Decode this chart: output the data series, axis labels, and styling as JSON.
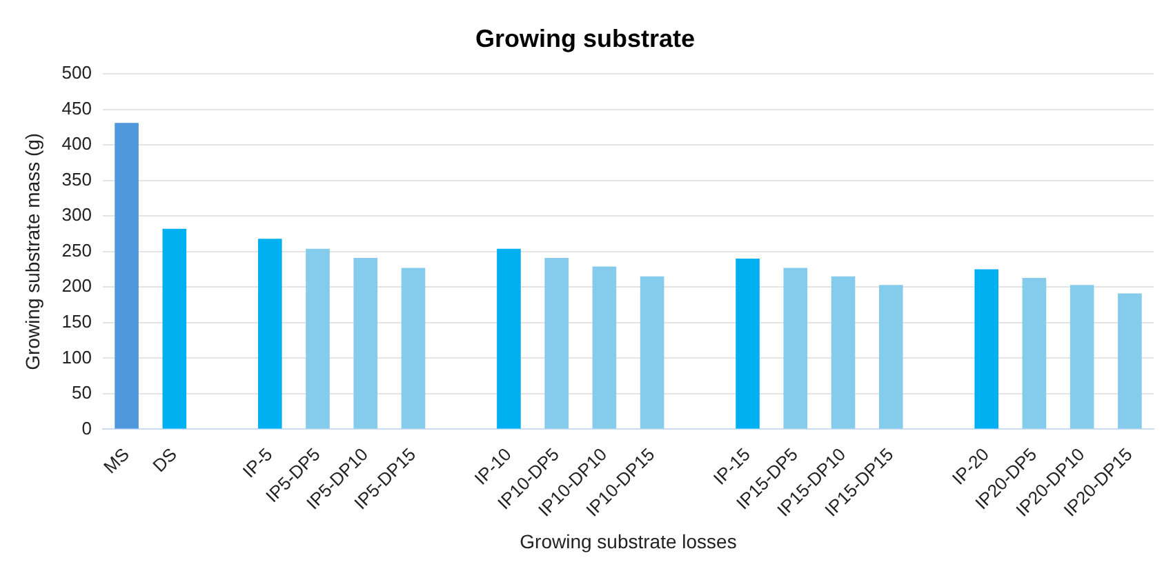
{
  "chart_data": {
    "type": "bar",
    "title": "Growing substrate",
    "xlabel": "Growing substrate losses",
    "ylabel": "Growing substrate mass (g)",
    "categories": [
      "MS",
      "DS",
      null,
      "IP-5",
      "IP5-DP5",
      "IP5-DP10",
      "IP5-DP15",
      null,
      "IP-10",
      "IP10-DP5",
      "IP10-DP10",
      "IP10-DP15",
      null,
      "IP-15",
      "IP15-DP5",
      "IP15-DP10",
      "IP15-DP15",
      null,
      "IP-20",
      "IP20-DP5",
      "IP20-DP10",
      "IP20-DP15"
    ],
    "values": [
      431,
      282,
      null,
      268,
      254,
      241,
      227,
      null,
      254,
      241,
      229,
      215,
      null,
      240,
      227,
      215,
      203,
      null,
      225,
      213,
      203,
      191
    ],
    "colors": [
      "#4e97da",
      "#00b0f0",
      null,
      "#00b0f0",
      "#85cbeb",
      "#85cbeb",
      "#85cbeb",
      null,
      "#00b0f0",
      "#85cbeb",
      "#85cbeb",
      "#85cbeb",
      null,
      "#00b0f0",
      "#85cbeb",
      "#85cbeb",
      "#85cbeb",
      null,
      "#00b0f0",
      "#85cbeb",
      "#85cbeb",
      "#85cbeb"
    ],
    "ylim": [
      0,
      500
    ],
    "yticks": [
      0,
      50,
      100,
      150,
      200,
      250,
      300,
      350,
      400,
      450,
      500
    ],
    "grid": "y",
    "legend": false
  }
}
